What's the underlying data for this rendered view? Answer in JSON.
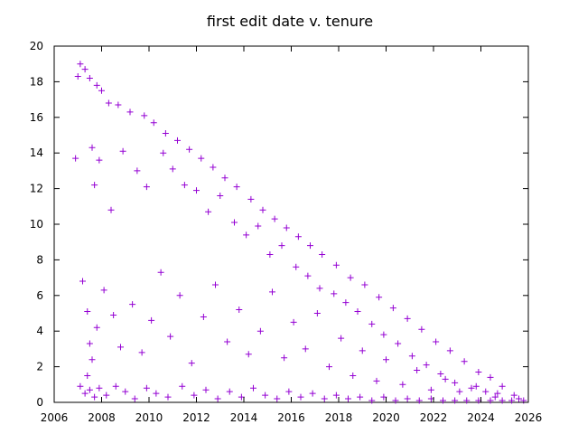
{
  "chart_data": {
    "type": "scatter",
    "title": "first edit date v. tenure",
    "xlabel": "",
    "ylabel": "",
    "xlim": [
      2006,
      2026
    ],
    "ylim": [
      0,
      20
    ],
    "x_ticks": [
      2006,
      2008,
      2010,
      2012,
      2014,
      2016,
      2018,
      2020,
      2022,
      2024,
      2026
    ],
    "x_tick_labels": [
      "2006",
      "2008",
      "2010",
      "2012",
      "2014",
      "2016",
      "2018",
      "2020",
      "2022",
      "2024",
      "2026"
    ],
    "y_ticks": [
      0,
      2,
      4,
      6,
      8,
      10,
      12,
      14,
      16,
      18,
      20
    ],
    "y_tick_labels": [
      "0",
      "2",
      "4",
      "6",
      "8",
      "10",
      "12",
      "14",
      "16",
      "18",
      "20"
    ],
    "grid": false,
    "marker": "+",
    "marker_color": "#9400d3",
    "series": [
      {
        "points": [
          [
            2006.9,
            13.7
          ],
          [
            2007.0,
            18.3
          ],
          [
            2007.1,
            19.0
          ],
          [
            2007.3,
            18.7
          ],
          [
            2007.5,
            18.2
          ],
          [
            2007.8,
            17.8
          ],
          [
            2008.0,
            17.5
          ],
          [
            2008.3,
            16.8
          ],
          [
            2008.7,
            16.7
          ],
          [
            2009.2,
            16.3
          ],
          [
            2009.8,
            16.1
          ],
          [
            2010.2,
            15.7
          ],
          [
            2010.7,
            15.1
          ],
          [
            2011.2,
            14.7
          ],
          [
            2011.7,
            14.2
          ],
          [
            2012.2,
            13.7
          ],
          [
            2012.7,
            13.2
          ],
          [
            2013.2,
            12.6
          ],
          [
            2013.7,
            12.1
          ],
          [
            2014.3,
            11.4
          ],
          [
            2014.8,
            10.8
          ],
          [
            2015.3,
            10.3
          ],
          [
            2015.8,
            9.8
          ],
          [
            2016.3,
            9.3
          ],
          [
            2016.8,
            8.8
          ],
          [
            2017.3,
            8.3
          ],
          [
            2017.9,
            7.7
          ],
          [
            2018.5,
            7.0
          ],
          [
            2019.1,
            6.6
          ],
          [
            2019.7,
            5.9
          ],
          [
            2020.3,
            5.3
          ],
          [
            2020.9,
            4.7
          ],
          [
            2021.5,
            4.1
          ],
          [
            2022.1,
            3.4
          ],
          [
            2022.7,
            2.9
          ],
          [
            2023.3,
            2.3
          ],
          [
            2023.9,
            1.7
          ],
          [
            2024.4,
            1.4
          ],
          [
            2024.9,
            0.9
          ],
          [
            2025.4,
            0.4
          ],
          [
            2007.6,
            14.3
          ],
          [
            2007.7,
            12.2
          ],
          [
            2007.9,
            13.6
          ],
          [
            2008.4,
            10.8
          ],
          [
            2008.9,
            14.1
          ],
          [
            2009.5,
            13.0
          ],
          [
            2009.9,
            12.1
          ],
          [
            2010.6,
            14.0
          ],
          [
            2011.0,
            13.1
          ],
          [
            2011.5,
            12.2
          ],
          [
            2012.0,
            11.9
          ],
          [
            2012.5,
            10.7
          ],
          [
            2013.0,
            11.6
          ],
          [
            2013.6,
            10.1
          ],
          [
            2014.1,
            9.4
          ],
          [
            2014.6,
            9.9
          ],
          [
            2015.1,
            8.3
          ],
          [
            2015.6,
            8.8
          ],
          [
            2016.2,
            7.6
          ],
          [
            2016.7,
            7.1
          ],
          [
            2017.2,
            6.4
          ],
          [
            2017.8,
            6.1
          ],
          [
            2018.3,
            5.6
          ],
          [
            2018.8,
            5.1
          ],
          [
            2019.4,
            4.4
          ],
          [
            2019.9,
            3.8
          ],
          [
            2020.5,
            3.3
          ],
          [
            2021.1,
            2.6
          ],
          [
            2021.7,
            2.1
          ],
          [
            2022.3,
            1.6
          ],
          [
            2022.9,
            1.1
          ],
          [
            2023.6,
            0.8
          ],
          [
            2024.2,
            0.6
          ],
          [
            2024.7,
            0.5
          ],
          [
            2025.6,
            0.2
          ],
          [
            2007.2,
            6.8
          ],
          [
            2007.4,
            5.1
          ],
          [
            2007.5,
            3.3
          ],
          [
            2007.6,
            2.4
          ],
          [
            2007.4,
            1.5
          ],
          [
            2007.8,
            4.2
          ],
          [
            2008.1,
            6.3
          ],
          [
            2008.5,
            4.9
          ],
          [
            2008.8,
            3.1
          ],
          [
            2009.3,
            5.5
          ],
          [
            2009.7,
            2.8
          ],
          [
            2010.1,
            4.6
          ],
          [
            2010.5,
            7.3
          ],
          [
            2010.9,
            3.7
          ],
          [
            2011.3,
            6.0
          ],
          [
            2011.8,
            2.2
          ],
          [
            2012.3,
            4.8
          ],
          [
            2012.8,
            6.6
          ],
          [
            2013.3,
            3.4
          ],
          [
            2013.8,
            5.2
          ],
          [
            2014.2,
            2.7
          ],
          [
            2014.7,
            4.0
          ],
          [
            2015.2,
            6.2
          ],
          [
            2015.7,
            2.5
          ],
          [
            2016.1,
            4.5
          ],
          [
            2016.6,
            3.0
          ],
          [
            2017.1,
            5.0
          ],
          [
            2017.6,
            2.0
          ],
          [
            2018.1,
            3.6
          ],
          [
            2018.6,
            1.5
          ],
          [
            2019.0,
            2.9
          ],
          [
            2019.6,
            1.2
          ],
          [
            2020.0,
            2.4
          ],
          [
            2020.7,
            1.0
          ],
          [
            2021.3,
            1.8
          ],
          [
            2021.9,
            0.7
          ],
          [
            2022.5,
            1.3
          ],
          [
            2023.1,
            0.6
          ],
          [
            2023.8,
            0.9
          ],
          [
            2024.6,
            0.3
          ],
          [
            2007.1,
            0.9
          ],
          [
            2007.3,
            0.5
          ],
          [
            2007.5,
            0.7
          ],
          [
            2007.7,
            0.3
          ],
          [
            2007.9,
            0.8
          ],
          [
            2008.2,
            0.4
          ],
          [
            2008.6,
            0.9
          ],
          [
            2009.0,
            0.6
          ],
          [
            2009.4,
            0.2
          ],
          [
            2009.9,
            0.8
          ],
          [
            2010.3,
            0.5
          ],
          [
            2010.8,
            0.3
          ],
          [
            2011.4,
            0.9
          ],
          [
            2011.9,
            0.4
          ],
          [
            2012.4,
            0.7
          ],
          [
            2012.9,
            0.2
          ],
          [
            2013.4,
            0.6
          ],
          [
            2013.9,
            0.3
          ],
          [
            2014.4,
            0.8
          ],
          [
            2014.9,
            0.4
          ],
          [
            2015.4,
            0.2
          ],
          [
            2015.9,
            0.6
          ],
          [
            2016.4,
            0.3
          ],
          [
            2016.9,
            0.5
          ],
          [
            2017.4,
            0.2
          ],
          [
            2017.9,
            0.4
          ],
          [
            2018.4,
            0.2
          ],
          [
            2018.9,
            0.3
          ],
          [
            2019.4,
            0.1
          ],
          [
            2019.9,
            0.3
          ],
          [
            2020.4,
            0.1
          ],
          [
            2020.9,
            0.2
          ],
          [
            2021.4,
            0.1
          ],
          [
            2021.9,
            0.2
          ],
          [
            2022.4,
            0.1
          ],
          [
            2022.9,
            0.1
          ],
          [
            2023.4,
            0.1
          ],
          [
            2023.9,
            0.1
          ],
          [
            2024.4,
            0.1
          ],
          [
            2024.9,
            0.1
          ],
          [
            2025.3,
            0.1
          ],
          [
            2025.8,
            0.1
          ]
        ]
      }
    ]
  }
}
